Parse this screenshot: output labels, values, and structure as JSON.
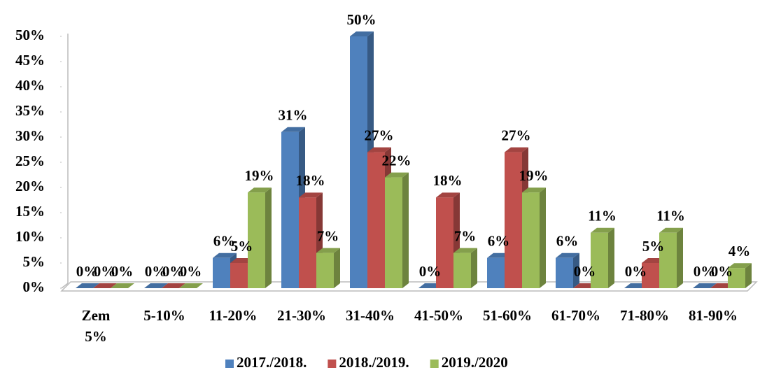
{
  "chart_data": {
    "type": "bar3d",
    "categories": [
      "Zem\n5%",
      "5-10%",
      "11-20%",
      "21-30%",
      "31-40%",
      "41-50%",
      "51-60%",
      "61-70%",
      "71-80%",
      "81-90%"
    ],
    "series": [
      {
        "name": "2017./2018.",
        "color": "#4f81bd",
        "values": [
          0,
          0,
          6,
          31,
          50,
          0,
          6,
          6,
          0,
          0
        ],
        "value_labels": [
          "0%",
          "0%",
          "6%",
          "31%",
          "50%",
          "0%",
          "6%",
          "6%",
          "0%",
          "0%"
        ]
      },
      {
        "name": "2018./2019.",
        "color": "#c0504d",
        "values": [
          0,
          0,
          5,
          18,
          27,
          18,
          27,
          0,
          5,
          0
        ],
        "value_labels": [
          "0%",
          "0%",
          "5%",
          "18%",
          "27%",
          "18%",
          "27%",
          "0%",
          "5%",
          "0%"
        ]
      },
      {
        "name": "2019./2020",
        "color": "#9bbb59",
        "values": [
          0,
          0,
          19,
          7,
          22,
          7,
          19,
          11,
          11,
          4
        ],
        "value_labels": [
          "0%",
          "0%",
          "19%",
          "7%",
          "22%",
          "7%",
          "19%",
          "11%",
          "11%",
          "4%"
        ]
      }
    ],
    "ylim": [
      0,
      50
    ],
    "yticks": [
      {
        "value": 0,
        "label": "0%"
      },
      {
        "value": 5,
        "label": "5%"
      },
      {
        "value": 10,
        "label": "10%"
      },
      {
        "value": 15,
        "label": "15%"
      },
      {
        "value": 20,
        "label": "20%"
      },
      {
        "value": 25,
        "label": "25%"
      },
      {
        "value": 30,
        "label": "30%"
      },
      {
        "value": 35,
        "label": "35%"
      },
      {
        "value": 40,
        "label": "40%"
      },
      {
        "value": 45,
        "label": "45%"
      },
      {
        "value": 50,
        "label": "50%"
      }
    ],
    "legend": "bottom"
  }
}
